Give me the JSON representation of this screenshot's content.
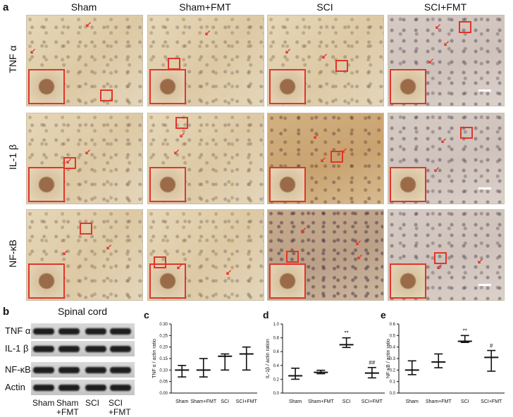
{
  "panel_a": {
    "letter": "a",
    "columns": [
      "Sham",
      "Sham+FMT",
      "SCI",
      "SCI+FMT"
    ],
    "rows": [
      "TNF α",
      "IL-1 β",
      "NF-κB"
    ]
  },
  "panel_b": {
    "letter": "b",
    "title": "Spinal cord",
    "row_labels": [
      "TNF α",
      "IL-1 β",
      "NF-κB",
      "Actin"
    ],
    "lane_labels": [
      {
        "line1": "Sham",
        "line2": ""
      },
      {
        "line1": "Sham",
        "line2": "+FMT"
      },
      {
        "line1": "SCI",
        "line2": ""
      },
      {
        "line1": "SCI",
        "line2": "+FMT"
      }
    ]
  },
  "chart_data": [
    {
      "panel": "c",
      "type": "scatter",
      "ylabel": "TNF α / actin ratio",
      "categories": [
        "Sham",
        "Sham+FMT",
        "SCI",
        "SCI+FMT"
      ],
      "mean": [
        0.1,
        0.1,
        0.16,
        0.17
      ],
      "low": [
        0.07,
        0.07,
        0.1,
        0.1
      ],
      "high": [
        0.12,
        0.15,
        0.17,
        0.2
      ],
      "ylim": [
        0.0,
        0.3
      ],
      "yticks": [
        "0.00",
        "0.05",
        "0.10",
        "0.15",
        "0.20",
        "0.25",
        "0.30"
      ],
      "annotations": [
        "",
        "",
        "",
        ""
      ]
    },
    {
      "panel": "d",
      "type": "scatter",
      "ylabel": "IL-1β / actin ration",
      "categories": [
        "Sham",
        "Sham+FMT",
        "SCI",
        "SCI+FMT"
      ],
      "mean": [
        0.25,
        0.3,
        0.7,
        0.29
      ],
      "low": [
        0.2,
        0.28,
        0.66,
        0.22
      ],
      "high": [
        0.36,
        0.33,
        0.8,
        0.37
      ],
      "ylim": [
        0.0,
        1.0
      ],
      "yticks": [
        "0.0",
        "0.2",
        "0.4",
        "0.6",
        "0.8",
        "1.0"
      ],
      "annotations": [
        "",
        "",
        "**",
        "##"
      ]
    },
    {
      "panel": "e",
      "type": "scatter",
      "ylabel": "NF-κB / actin ratio",
      "categories": [
        "Sham",
        "Sham+FMT",
        "SCI",
        "SCI+FMT"
      ],
      "mean": [
        0.2,
        0.27,
        0.45,
        0.31
      ],
      "low": [
        0.16,
        0.22,
        0.44,
        0.19
      ],
      "high": [
        0.28,
        0.34,
        0.5,
        0.37
      ],
      "ylim": [
        0.0,
        0.6
      ],
      "yticks": [
        "0.0",
        "0.1",
        "0.2",
        "0.3",
        "0.4",
        "0.5",
        "0.6"
      ],
      "annotations": [
        "",
        "",
        "**",
        "#"
      ]
    }
  ],
  "chart_letters": [
    "c",
    "d",
    "e"
  ],
  "colors": {
    "marker_red": "#e0362a",
    "ink": "#111111"
  }
}
